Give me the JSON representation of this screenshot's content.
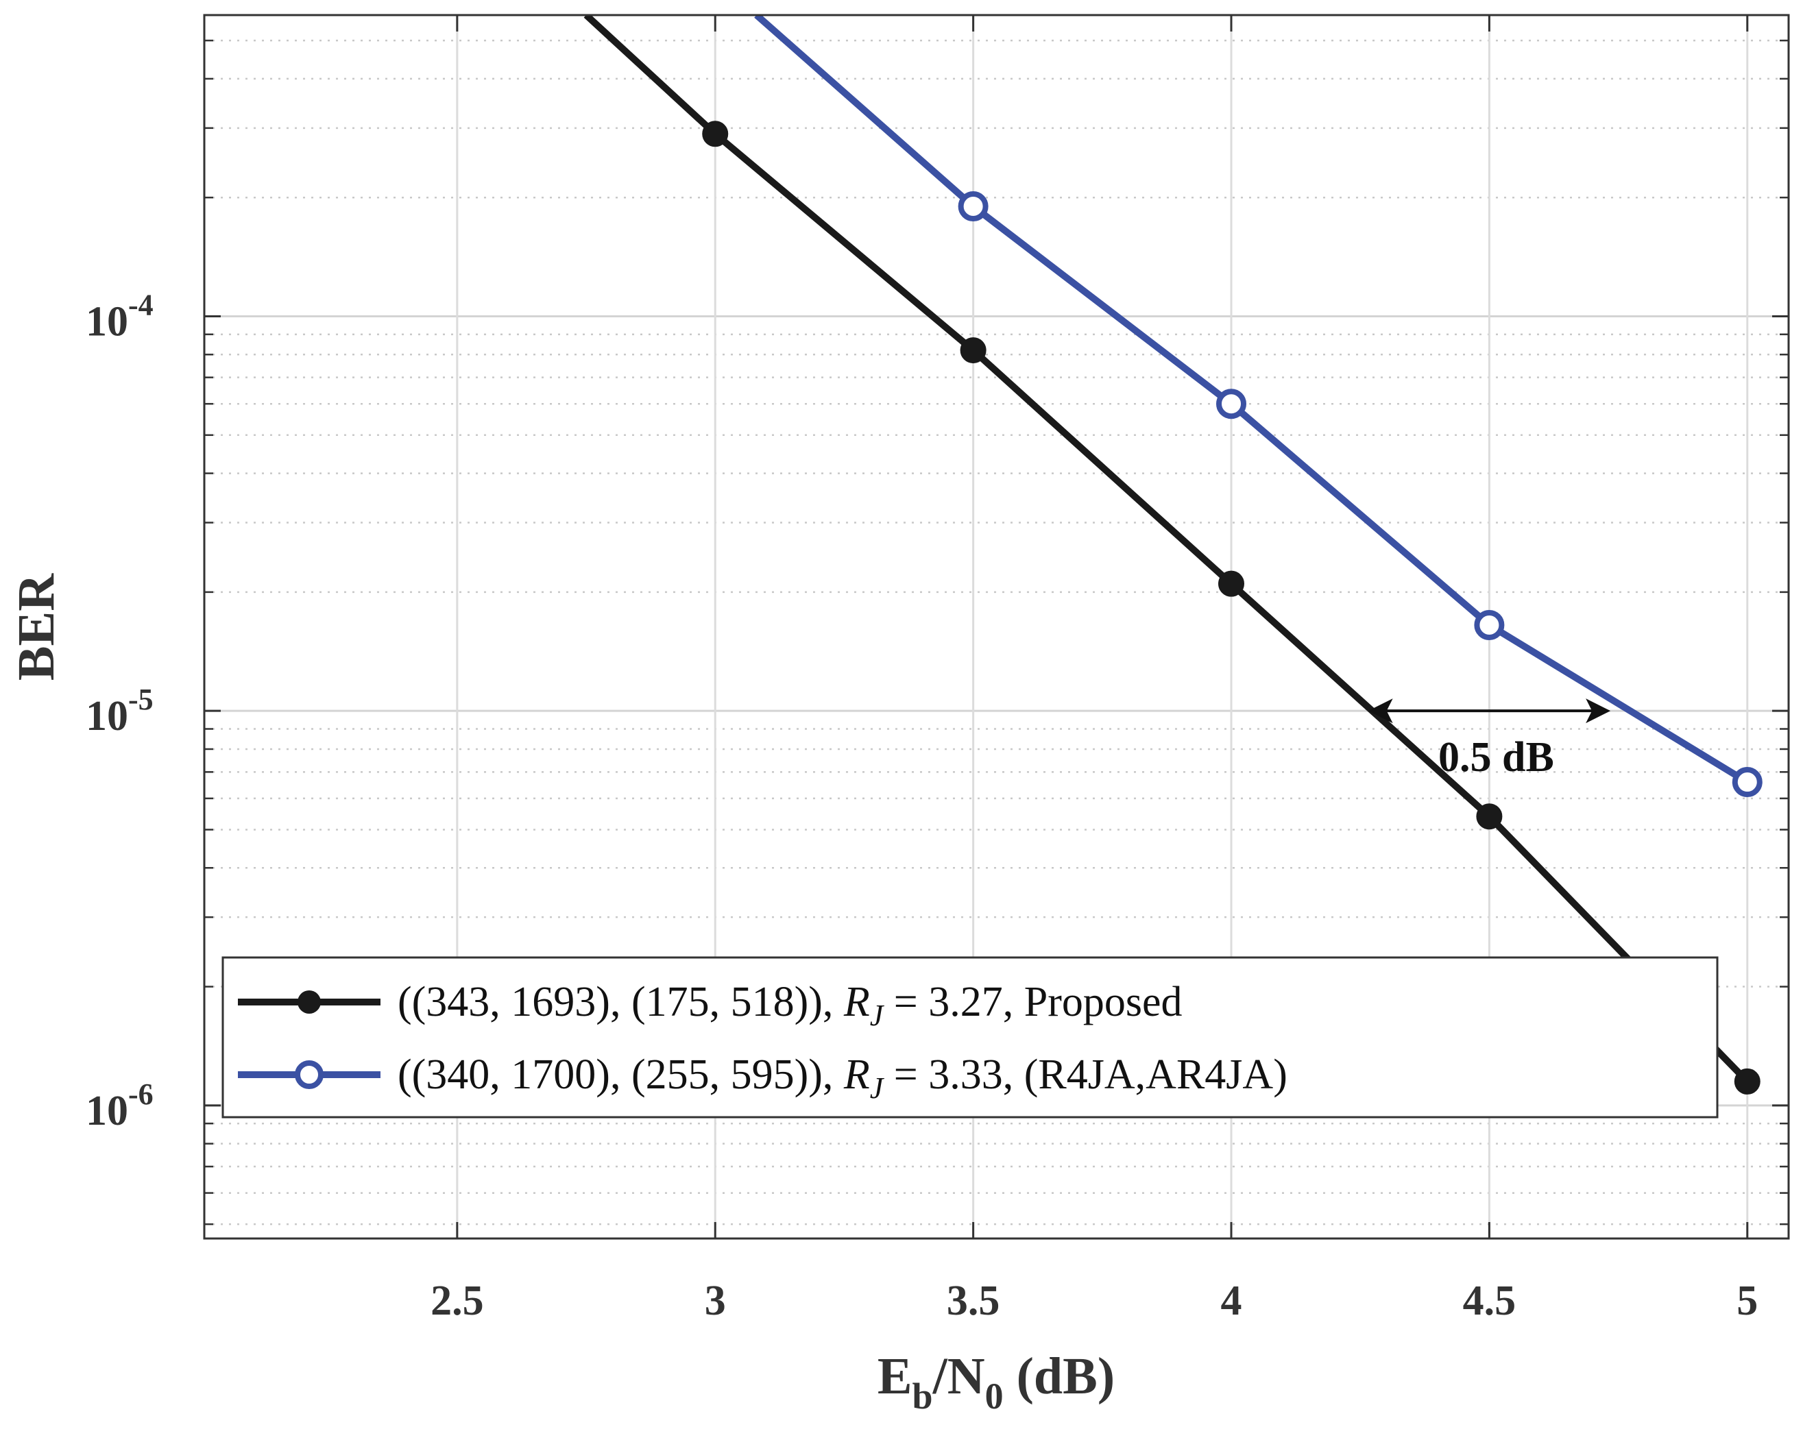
{
  "chart_data": {
    "type": "line",
    "xlabel": "E_b/N_0 (dB)",
    "ylabel": "BER",
    "xlim": [
      2.01,
      5.08
    ],
    "ylim": [
      4.6e-07,
      0.00058
    ],
    "yscale": "log",
    "grid": true,
    "legend_position": "bottom-left",
    "xticks": [
      2.5,
      3,
      3.5,
      4,
      4.5,
      5
    ],
    "xtick_labels": [
      "2.5",
      "3",
      "3.5",
      "4",
      "4.5",
      "5"
    ],
    "yticks": [
      0.0001,
      1e-05,
      1e-06
    ],
    "ytick_labels": [
      {
        "base": "10",
        "exp": "-4"
      },
      {
        "base": "10",
        "exp": "-5"
      },
      {
        "base": "10",
        "exp": "-6"
      }
    ],
    "series": [
      {
        "name": "((343, 1693), (175, 518)), R_J = 3.27, Proposed",
        "color": "#1a1a1a",
        "marker": "filled-circle",
        "x": [
          2.75,
          3,
          3.5,
          4,
          4.5,
          5
        ],
        "y": [
          0.00058,
          0.00029,
          8.2e-05,
          2.1e-05,
          5.4e-06,
          1.15e-06
        ],
        "markers_at": [
          3,
          3.5,
          4,
          4.5,
          5
        ]
      },
      {
        "name": "((340, 1700), (255, 595)), R_J = 3.33, (R4JA,AR4JA)",
        "color": "#3b51a3",
        "marker": "open-circle",
        "x": [
          3.08,
          3.5,
          4,
          4.5,
          5
        ],
        "y": [
          0.00058,
          0.00019,
          6e-05,
          1.65e-05,
          6.6e-06
        ],
        "markers_at": [
          3.5,
          4,
          4.5,
          5
        ]
      }
    ],
    "annotations": [
      {
        "text": "0.5 dB",
        "type": "double-arrow",
        "x_from": 4.27,
        "x_to": 4.73,
        "y": 1e-05
      }
    ]
  },
  "legend": {
    "entries": [
      {
        "open": "((343, 1693), (175, 518)), ",
        "italic": "R",
        "sub": "J",
        "close": " = 3.27, Proposed"
      },
      {
        "open": "((340, 1700), (255, 595)), ",
        "italic": "R",
        "sub": "J",
        "close": " = 3.33, (R4JA,AR4JA)"
      }
    ]
  },
  "axis_titles": {
    "x": {
      "main": "E",
      "sub1": "b",
      "slash": "/N",
      "sub2": "0",
      "tail": " (dB)"
    },
    "y": "BER"
  }
}
